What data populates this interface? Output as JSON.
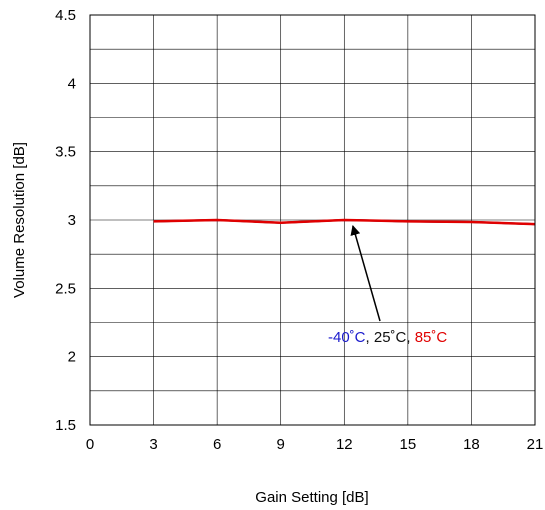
{
  "chart_data": {
    "type": "line",
    "xlabel": "Gain Setting [dB]",
    "ylabel": "Volume Resolution [dB]",
    "xlim": [
      0,
      21
    ],
    "ylim": [
      1.5,
      4.5
    ],
    "x_ticks": [
      0,
      3,
      6,
      9,
      12,
      15,
      18,
      21
    ],
    "x_tick_labels": [
      "0",
      "3",
      "6",
      "9",
      "12",
      "15",
      "18",
      "21"
    ],
    "y_ticks": [
      1.5,
      2,
      2.5,
      3,
      3.5,
      4,
      4.5
    ],
    "y_tick_labels": [
      "1.5",
      "2",
      "2.5",
      "3",
      "3.5",
      "4",
      "4.5"
    ],
    "y_minor_step": 0.25,
    "grid": true,
    "series": [
      {
        "name": "-40˚C",
        "color": "#1a1acc",
        "x": [
          3,
          6,
          9,
          12,
          15,
          18,
          21
        ],
        "y": [
          2.99,
          3.0,
          2.98,
          3.0,
          2.99,
          2.985,
          2.97
        ]
      },
      {
        "name": "25˚C",
        "color": "#111111",
        "x": [
          3,
          6,
          9,
          12,
          15,
          18,
          21
        ],
        "y": [
          2.99,
          3.0,
          2.98,
          3.0,
          2.99,
          2.985,
          2.97
        ]
      },
      {
        "name": "85˚C",
        "color": "#e00000",
        "x": [
          3,
          6,
          9,
          12,
          15,
          18,
          21
        ],
        "y": [
          2.99,
          3.0,
          2.98,
          3.0,
          2.99,
          2.985,
          2.97
        ]
      }
    ],
    "annotation": {
      "parts": [
        {
          "text": "-40˚C",
          "color": "#1a1acc"
        },
        {
          "text": ", 25˚C, ",
          "color": "#111111"
        },
        {
          "text": "85˚C",
          "color": "#e00000"
        }
      ],
      "arrow_target": {
        "x": 12.5,
        "y": 3.0
      }
    }
  }
}
